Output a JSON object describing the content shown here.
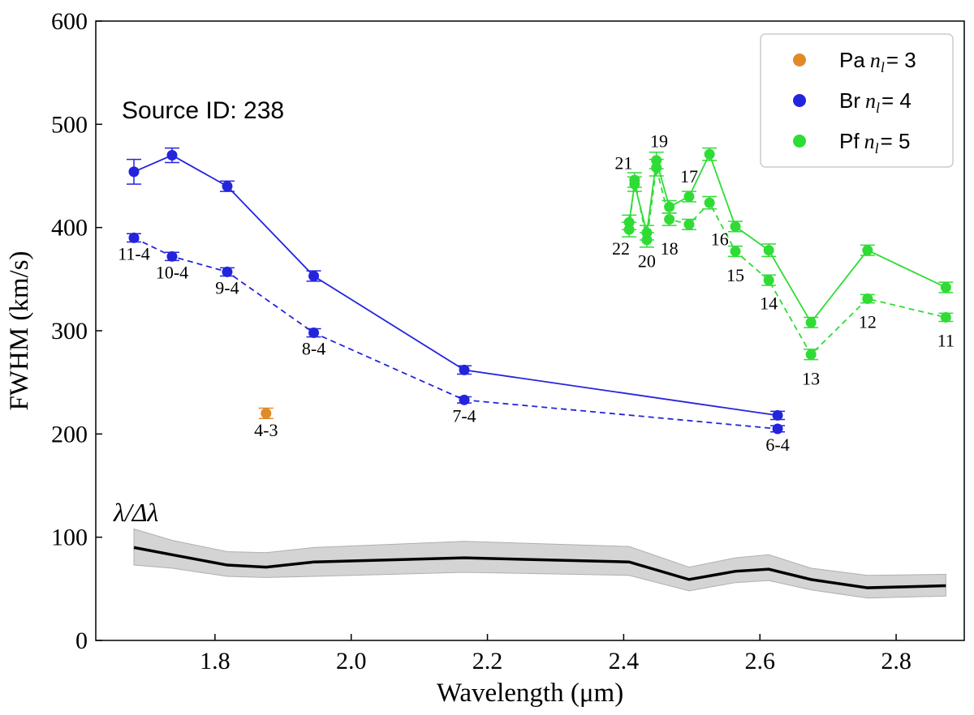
{
  "chart_data": {
    "type": "line",
    "xlabel": "Wavelength (μm)",
    "ylabel": "FWHM (km/s)",
    "xlim": [
      1.625,
      2.9
    ],
    "ylim": [
      0,
      600
    ],
    "x_ticks": [
      "1.8",
      "2.0",
      "2.2",
      "2.4",
      "2.6",
      "2.8"
    ],
    "y_ticks": [
      "0",
      "100",
      "200",
      "300",
      "400",
      "500",
      "600"
    ],
    "annotation_source": "Source ID: 238",
    "resolving_label": "λ/Δλ",
    "legend_position": "top-right",
    "legend": [
      {
        "prefix": "Pa",
        "symbol": "n",
        "sub": "l",
        "value": "= 3",
        "color": "#e08a2a"
      },
      {
        "prefix": "Br",
        "symbol": "n",
        "sub": "l",
        "value": "= 4",
        "color": "#2424dd"
      },
      {
        "prefix": "Pf",
        "symbol": "n",
        "sub": "l",
        "value": "= 5",
        "color": "#2fdc35"
      }
    ],
    "series": [
      {
        "name": "Br solid",
        "color": "#2424dd",
        "dash": "solid",
        "points": [
          {
            "x": 1.681,
            "y": 454,
            "err": 12
          },
          {
            "x": 1.737,
            "y": 470,
            "err": 7
          },
          {
            "x": 1.818,
            "y": 440,
            "err": 5
          },
          {
            "x": 1.945,
            "y": 353,
            "err": 5
          },
          {
            "x": 2.166,
            "y": 262,
            "err": 4
          },
          {
            "x": 2.626,
            "y": 218,
            "err": 4
          }
        ]
      },
      {
        "name": "Br dashed",
        "color": "#2424dd",
        "dash": "dashed",
        "points": [
          {
            "x": 1.681,
            "y": 390,
            "err": 4
          },
          {
            "x": 1.737,
            "y": 372,
            "err": 4
          },
          {
            "x": 1.818,
            "y": 357,
            "err": 4
          },
          {
            "x": 1.945,
            "y": 298,
            "err": 4
          },
          {
            "x": 2.166,
            "y": 233,
            "err": 3
          },
          {
            "x": 2.626,
            "y": 205,
            "err": 3
          }
        ]
      },
      {
        "name": "Pf solid",
        "color": "#2fdc35",
        "dash": "solid",
        "points": [
          {
            "x": 2.408,
            "y": 405,
            "err": 7
          },
          {
            "x": 2.416,
            "y": 442,
            "err": 7
          },
          {
            "x": 2.434,
            "y": 395,
            "err": 7
          },
          {
            "x": 2.448,
            "y": 465,
            "err": 8
          },
          {
            "x": 2.467,
            "y": 420,
            "err": 6
          },
          {
            "x": 2.496,
            "y": 430,
            "err": 5
          },
          {
            "x": 2.526,
            "y": 471,
            "err": 6
          },
          {
            "x": 2.564,
            "y": 401,
            "err": 5
          },
          {
            "x": 2.613,
            "y": 378,
            "err": 6
          },
          {
            "x": 2.675,
            "y": 308,
            "err": 5
          },
          {
            "x": 2.758,
            "y": 378,
            "err": 5
          },
          {
            "x": 2.873,
            "y": 342,
            "err": 5
          }
        ]
      },
      {
        "name": "Pf dashed",
        "color": "#2fdc35",
        "dash": "dashed",
        "points": [
          {
            "x": 2.408,
            "y": 398,
            "err": 7
          },
          {
            "x": 2.416,
            "y": 446,
            "err": 7
          },
          {
            "x": 2.434,
            "y": 388,
            "err": 7
          },
          {
            "x": 2.448,
            "y": 458,
            "err": 8
          },
          {
            "x": 2.467,
            "y": 408,
            "err": 6
          },
          {
            "x": 2.496,
            "y": 403,
            "err": 5
          },
          {
            "x": 2.526,
            "y": 424,
            "err": 6
          },
          {
            "x": 2.564,
            "y": 377,
            "err": 5
          },
          {
            "x": 2.613,
            "y": 349,
            "err": 5
          },
          {
            "x": 2.675,
            "y": 277,
            "err": 5
          },
          {
            "x": 2.758,
            "y": 331,
            "err": 4
          },
          {
            "x": 2.873,
            "y": 313,
            "err": 4
          }
        ]
      },
      {
        "name": "Pa",
        "color": "#e08a2a",
        "dash": "none",
        "points": [
          {
            "x": 1.875,
            "y": 220,
            "err": 5
          }
        ]
      }
    ],
    "resolving_power": {
      "color": "#000000",
      "band_color": "#d4d4d4",
      "x": [
        1.681,
        1.737,
        1.818,
        1.875,
        1.945,
        2.166,
        2.408,
        2.496,
        2.564,
        2.613,
        2.675,
        2.758,
        2.873
      ],
      "y": [
        90,
        83,
        73,
        71,
        76,
        80,
        76,
        59,
        67,
        69,
        59,
        51,
        53
      ],
      "low": [
        73,
        70,
        62,
        61,
        62,
        66,
        63,
        48,
        56,
        58,
        49,
        41,
        43
      ],
      "high": [
        108,
        97,
        86,
        85,
        90,
        96,
        91,
        71,
        80,
        83,
        70,
        63,
        64
      ]
    },
    "line_labels": [
      {
        "text": "11-4",
        "x": 1.681,
        "y": 375
      },
      {
        "text": "10-4",
        "x": 1.737,
        "y": 357
      },
      {
        "text": "9-4",
        "x": 1.818,
        "y": 342
      },
      {
        "text": "8-4",
        "x": 1.945,
        "y": 283
      },
      {
        "text": "7-4",
        "x": 2.166,
        "y": 218
      },
      {
        "text": "6-4",
        "x": 2.626,
        "y": 190
      },
      {
        "text": "4-3",
        "x": 1.875,
        "y": 204
      },
      {
        "text": "22",
        "x": 2.396,
        "y": 380
      },
      {
        "text": "21",
        "x": 2.4,
        "y": 463
      },
      {
        "text": "20",
        "x": 2.434,
        "y": 368
      },
      {
        "text": "19",
        "x": 2.452,
        "y": 484
      },
      {
        "text": "18",
        "x": 2.467,
        "y": 380
      },
      {
        "text": "17",
        "x": 2.496,
        "y": 450
      },
      {
        "text": "16",
        "x": 2.541,
        "y": 389
      },
      {
        "text": "15",
        "x": 2.564,
        "y": 354
      },
      {
        "text": "14",
        "x": 2.613,
        "y": 327
      },
      {
        "text": "13",
        "x": 2.675,
        "y": 254
      },
      {
        "text": "12",
        "x": 2.758,
        "y": 309
      },
      {
        "text": "11",
        "x": 2.873,
        "y": 291
      }
    ]
  }
}
